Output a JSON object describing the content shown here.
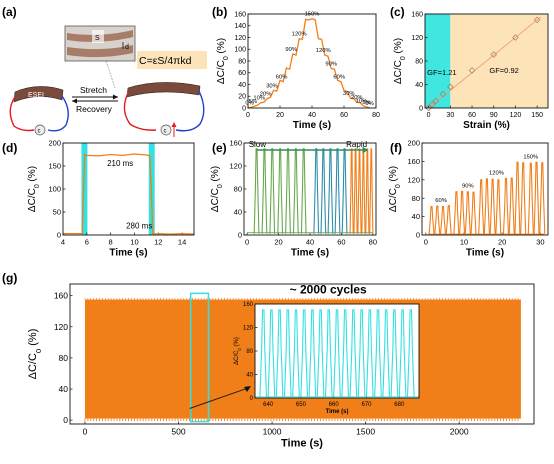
{
  "figure": {
    "panel_labels": [
      "(a)",
      "(b)",
      "(c)",
      "(d)",
      "(e)",
      "(f)",
      "(g)"
    ]
  },
  "schematic": {
    "formula": "C=εS/4πkd",
    "stretch_label": "Stretch",
    "recovery_label": "Recovery",
    "electrode_label": "ESEI",
    "zoom_s": "S",
    "zoom_d": "d",
    "strip_color": "#7a4a3a",
    "wire_red": "#e41a1c",
    "wire_blue": "#1f3fcf"
  },
  "chart_data": [
    {
      "id": "b",
      "type": "line",
      "title": "",
      "xlabel": "Time (s)",
      "ylabel": "ΔC/C0 (%)",
      "xlim": [
        0,
        80
      ],
      "ylim": [
        0,
        160
      ],
      "xticks": [
        0,
        20,
        40,
        60,
        80
      ],
      "yticks": [
        0,
        20,
        40,
        60,
        80,
        100,
        120,
        140,
        160
      ],
      "color": "#f07f1a",
      "series": [
        {
          "x": [
            0,
            2,
            4,
            6,
            8,
            10,
            12,
            14,
            16,
            18,
            20,
            22,
            24,
            26,
            28,
            30,
            32,
            34,
            36,
            38,
            40,
            42,
            44,
            46,
            48,
            50,
            52,
            54,
            56,
            58,
            60,
            62,
            64,
            66,
            68,
            70,
            72,
            74,
            76
          ],
          "values": [
            0,
            1,
            3,
            5,
            9,
            10,
            16,
            18,
            30,
            29,
            47,
            45,
            68,
            66,
            92,
            90,
            118,
            117,
            151,
            150,
            152,
            150,
            118,
            117,
            90,
            88,
            67,
            66,
            47,
            45,
            30,
            28,
            17,
            16,
            10,
            9,
            4,
            2,
            0
          ]
        }
      ],
      "annotations": [
        "0%",
        "5%",
        "10%",
        "20%",
        "30%",
        "60%",
        "90%",
        "120%",
        "150%",
        "120%",
        "90%",
        "60%",
        "30%",
        "20%",
        "10%",
        "5%",
        "0%"
      ]
    },
    {
      "id": "c",
      "type": "scatter",
      "title": "",
      "xlabel": "Strain (%)",
      "ylabel": "ΔC/C0 (%)",
      "xlim": [
        -5,
        165
      ],
      "ylim": [
        0,
        160
      ],
      "xticks": [
        0,
        30,
        60,
        90,
        120,
        150
      ],
      "yticks": [
        0,
        40,
        80,
        120,
        160
      ],
      "x": [
        0,
        5,
        10,
        20,
        30,
        60,
        90,
        120,
        150
      ],
      "values": [
        0,
        6,
        12,
        24,
        36,
        64,
        91,
        120,
        150
      ],
      "annotations": [
        "GF=1.21",
        "GF=0.92"
      ],
      "region_low_color": "#40e6e0",
      "region_high_color": "#fde3b8",
      "color": "#f0a070"
    },
    {
      "id": "d",
      "type": "line",
      "title": "",
      "xlabel": "Time (s)",
      "ylabel": "ΔC/C0 (%)",
      "xlim": [
        4,
        15
      ],
      "ylim": [
        0,
        200
      ],
      "xticks": [
        4,
        6,
        8,
        10,
        12,
        14
      ],
      "yticks": [
        0,
        50,
        100,
        150,
        200
      ],
      "x": [
        4,
        5.6,
        5.82,
        6.0,
        7,
        8,
        9,
        10,
        11,
        11.3,
        11.55,
        12,
        13,
        14,
        15
      ],
      "values": [
        3,
        3,
        175,
        173,
        172,
        175,
        173,
        176,
        174,
        172,
        2,
        3,
        2,
        3,
        2
      ],
      "annotations": [
        "210 ms",
        "280 ms"
      ],
      "color": "#f07f1a",
      "highlight_color": "#35e0e0"
    },
    {
      "id": "e",
      "type": "line",
      "title": "",
      "xlabel": "Time (s)",
      "ylabel": "ΔC/C0 (%)",
      "xlim": [
        -2,
        82
      ],
      "ylim": [
        0,
        160
      ],
      "xticks": [
        0,
        20,
        40,
        60,
        80
      ],
      "yticks": [
        0,
        40,
        80,
        120,
        160
      ],
      "series": [
        {
          "color": "#6aa84f",
          "peak_times": [
            6,
            11,
            16,
            21,
            26,
            31,
            36
          ],
          "values": [
            150,
            150,
            150,
            150,
            150,
            150,
            150
          ]
        },
        {
          "color": "#2f8fa8",
          "peak_times": [
            44,
            48.5,
            53,
            57.5,
            62
          ],
          "values": [
            150,
            150,
            150,
            150,
            150
          ]
        },
        {
          "color": "#f07f1a",
          "peak_times": [
            66.5,
            69,
            71.5,
            74,
            76.5,
            79
          ],
          "values": [
            150,
            150,
            150,
            150,
            150,
            150
          ]
        }
      ],
      "annotations": [
        "Slow",
        "Rapid"
      ]
    },
    {
      "id": "f",
      "type": "line",
      "title": "",
      "xlabel": "Time (s)",
      "ylabel": "ΔC/C0 (%)",
      "xlim": [
        -1,
        32
      ],
      "ylim": [
        0,
        200
      ],
      "xticks": [
        0,
        10,
        20,
        30
      ],
      "yticks": [
        0,
        40,
        80,
        120,
        160,
        200
      ],
      "color": "#f07f1a",
      "series": [
        {
          "peak_times": [
            1.5,
            3,
            4.5,
            6,
            8,
            9.5,
            11,
            12.5,
            14.5,
            16,
            17.5,
            19,
            21,
            22.5,
            24,
            25.5,
            27.5,
            29,
            30.5
          ],
          "values": [
            62,
            63,
            62,
            64,
            94,
            95,
            94,
            93,
            120,
            122,
            121,
            120,
            123,
            124,
            158,
            157,
            156,
            158,
            157
          ]
        }
      ],
      "annotations": [
        "60%",
        "90%",
        "120%",
        "150%"
      ]
    },
    {
      "id": "g",
      "type": "area",
      "title": "~ 2000 cycles",
      "xlabel": "Time (s)",
      "ylabel": "ΔC/C0 (%)",
      "xlim": [
        -80,
        2400
      ],
      "ylim": [
        -5,
        175
      ],
      "xticks": [
        0,
        500,
        1000,
        1500,
        2000
      ],
      "yticks": [
        0,
        40,
        80,
        120,
        160
      ],
      "band_x": [
        0,
        2330
      ],
      "band_values": [
        2,
        155
      ],
      "color": "#f07f1a",
      "highlight_box_x": [
        565,
        660
      ],
      "highlight_color": "#35e0e0"
    },
    {
      "id": "g_inset",
      "type": "line",
      "title": "",
      "xlabel": "Time (s)",
      "ylabel": "ΔC/C0 (%)",
      "xlim": [
        636,
        686
      ],
      "ylim": [
        0,
        160
      ],
      "xticks": [
        640,
        650,
        660,
        670,
        680
      ],
      "yticks": [
        0,
        40,
        80,
        120,
        160
      ],
      "color": "#35e0e0",
      "series": [
        {
          "peak_times": [
            638.5,
            641,
            643.5,
            646,
            648.5,
            651,
            653.5,
            656,
            658.5,
            661,
            663.5,
            666,
            668.5,
            671,
            673.5,
            676,
            678.5,
            681,
            683.5
          ],
          "values": [
            150,
            150,
            150,
            150,
            150,
            150,
            150,
            150,
            150,
            150,
            150,
            150,
            150,
            150,
            150,
            150,
            150,
            150,
            150
          ]
        }
      ]
    }
  ]
}
